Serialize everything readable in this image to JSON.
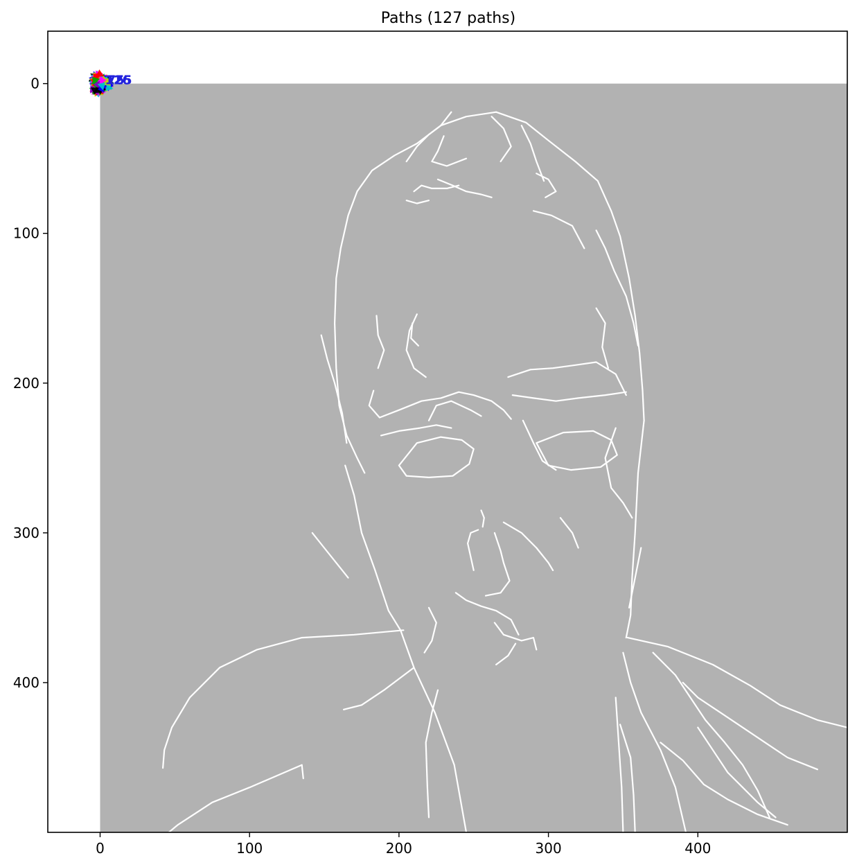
{
  "chart_data": {
    "type": "image-overlay",
    "title": "Paths (127 paths)",
    "xlabel": "",
    "ylabel": "",
    "xlim": [
      -35,
      500
    ],
    "ylim": [
      500,
      -35
    ],
    "image_extent": {
      "x": [
        0,
        500
      ],
      "y": [
        0,
        500
      ]
    },
    "image_background": "#b2b2b2",
    "edge_color": "#ffffff",
    "x_ticks": [
      0,
      100,
      200,
      300,
      400
    ],
    "y_ticks": [
      0,
      100,
      200,
      300,
      400
    ],
    "path_start_markers": {
      "count": 127,
      "center": [
        0,
        0
      ],
      "colors": [
        "#ff00ff",
        "#0000ff",
        "#00aa00",
        "#cccc00",
        "#000000",
        "#ff0000",
        "#00cccc",
        "#8800cc"
      ]
    },
    "path_number_labels": [
      "126",
      "125",
      "75"
    ],
    "path_number_label_color": "#2222dd",
    "edges": [
      [
        [
          265,
          19
        ],
        [
          245,
          22
        ],
        [
          228,
          28
        ],
        [
          212,
          40
        ],
        [
          197,
          48
        ],
        [
          182,
          58
        ],
        [
          172,
          72
        ],
        [
          166,
          88
        ],
        [
          161,
          110
        ],
        [
          158,
          130
        ],
        [
          157,
          160
        ],
        [
          158,
          190
        ],
        [
          160,
          215
        ],
        [
          165,
          235
        ],
        [
          172,
          250
        ],
        [
          177,
          260
        ]
      ],
      [
        [
          265,
          19
        ],
        [
          285,
          26
        ],
        [
          300,
          38
        ],
        [
          318,
          52
        ],
        [
          333,
          65
        ],
        [
          342,
          85
        ],
        [
          348,
          102
        ],
        [
          354,
          130
        ],
        [
          358,
          155
        ],
        [
          361,
          180
        ],
        [
          363,
          205
        ],
        [
          364,
          225
        ]
      ],
      [
        [
          164,
          255
        ],
        [
          170,
          275
        ],
        [
          175,
          300
        ],
        [
          184,
          325
        ],
        [
          193,
          352
        ],
        [
          201,
          365
        ],
        [
          210,
          390
        ],
        [
          224,
          420
        ],
        [
          237,
          455
        ],
        [
          245,
          500
        ]
      ],
      [
        [
          364,
          225
        ],
        [
          360,
          260
        ],
        [
          358,
          300
        ],
        [
          356,
          330
        ],
        [
          355,
          355
        ],
        [
          352,
          370
        ]
      ],
      [
        [
          353,
          370
        ],
        [
          380,
          376
        ],
        [
          410,
          388
        ],
        [
          435,
          402
        ],
        [
          455,
          415
        ],
        [
          480,
          425
        ],
        [
          500,
          430
        ]
      ],
      [
        [
          203,
          365
        ],
        [
          170,
          368
        ],
        [
          135,
          370
        ],
        [
          105,
          378
        ],
        [
          80,
          390
        ],
        [
          60,
          410
        ],
        [
          48,
          430
        ],
        [
          43,
          445
        ],
        [
          42,
          457
        ]
      ],
      [
        [
          210,
          390
        ],
        [
          190,
          405
        ],
        [
          175,
          415
        ],
        [
          163,
          418
        ]
      ],
      [
        [
          135,
          455
        ],
        [
          100,
          470
        ],
        [
          75,
          480
        ],
        [
          52,
          495
        ],
        [
          46,
          500
        ]
      ],
      [
        [
          135,
          455
        ],
        [
          136,
          464
        ]
      ],
      [
        [
          350,
          380
        ],
        [
          355,
          400
        ],
        [
          362,
          420
        ],
        [
          375,
          445
        ],
        [
          385,
          470
        ],
        [
          392,
          500
        ]
      ],
      [
        [
          345,
          410
        ],
        [
          347,
          440
        ],
        [
          349,
          470
        ],
        [
          350,
          500
        ]
      ],
      [
        [
          348,
          428
        ],
        [
          355,
          450
        ],
        [
          357,
          475
        ],
        [
          358,
          500
        ]
      ],
      [
        [
          226,
          405
        ],
        [
          222,
          420
        ],
        [
          218,
          440
        ],
        [
          219,
          470
        ],
        [
          220,
          490
        ]
      ],
      [
        [
          183,
          205
        ],
        [
          180,
          215
        ],
        [
          187,
          223
        ],
        [
          200,
          218
        ],
        [
          215,
          212
        ],
        [
          228,
          210
        ],
        [
          240,
          206
        ],
        [
          250,
          208
        ],
        [
          262,
          212
        ],
        [
          270,
          218
        ],
        [
          275,
          224
        ]
      ],
      [
        [
          188,
          235
        ],
        [
          200,
          232
        ],
        [
          214,
          230
        ],
        [
          225,
          228
        ],
        [
          235,
          230
        ]
      ],
      [
        [
          273,
          196
        ],
        [
          288,
          191
        ],
        [
          303,
          190
        ],
        [
          318,
          188
        ],
        [
          332,
          186
        ],
        [
          345,
          194
        ],
        [
          352,
          208
        ]
      ],
      [
        [
          276,
          208
        ],
        [
          290,
          210
        ],
        [
          305,
          212
        ],
        [
          320,
          210
        ],
        [
          338,
          208
        ],
        [
          352,
          206
        ]
      ],
      [
        [
          200,
          255
        ],
        [
          212,
          240
        ],
        [
          228,
          236
        ],
        [
          242,
          238
        ],
        [
          250,
          244
        ],
        [
          247,
          254
        ],
        [
          236,
          262
        ],
        [
          220,
          263
        ],
        [
          205,
          262
        ],
        [
          200,
          255
        ]
      ],
      [
        [
          292,
          240
        ],
        [
          310,
          233
        ],
        [
          330,
          232
        ],
        [
          342,
          238
        ],
        [
          346,
          248
        ],
        [
          335,
          256
        ],
        [
          315,
          258
        ],
        [
          300,
          255
        ],
        [
          292,
          240
        ]
      ],
      [
        [
          283,
          225
        ],
        [
          290,
          240
        ],
        [
          296,
          252
        ],
        [
          305,
          258
        ]
      ],
      [
        [
          255,
          285
        ],
        [
          257,
          290
        ],
        [
          256,
          296
        ]
      ],
      [
        [
          253,
          298
        ],
        [
          248,
          300
        ],
        [
          246,
          307
        ],
        [
          248,
          316
        ],
        [
          250,
          325
        ]
      ],
      [
        [
          270,
          293
        ],
        [
          282,
          300
        ],
        [
          292,
          310
        ],
        [
          300,
          320
        ],
        [
          303,
          325
        ]
      ],
      [
        [
          264,
          300
        ],
        [
          268,
          312
        ],
        [
          270,
          320
        ],
        [
          274,
          332
        ],
        [
          268,
          340
        ],
        [
          258,
          342
        ]
      ],
      [
        [
          238,
          340
        ],
        [
          245,
          345
        ],
        [
          255,
          349
        ],
        [
          265,
          352
        ],
        [
          275,
          358
        ],
        [
          280,
          368
        ]
      ],
      [
        [
          220,
          350
        ],
        [
          225,
          360
        ],
        [
          222,
          372
        ],
        [
          217,
          380
        ]
      ],
      [
        [
          264,
          360
        ],
        [
          270,
          368
        ],
        [
          282,
          372
        ],
        [
          290,
          370
        ],
        [
          292,
          378
        ]
      ],
      [
        [
          278,
          374
        ],
        [
          273,
          382
        ],
        [
          265,
          388
        ]
      ],
      [
        [
          218,
          196
        ],
        [
          210,
          190
        ],
        [
          205,
          178
        ],
        [
          207,
          165
        ],
        [
          212,
          154
        ]
      ],
      [
        [
          213,
          175
        ],
        [
          208,
          170
        ],
        [
          209,
          160
        ]
      ],
      [
        [
          235,
          19
        ],
        [
          228,
          28
        ],
        [
          220,
          34
        ],
        [
          212,
          42
        ],
        [
          205,
          52
        ]
      ],
      [
        [
          230,
          35
        ],
        [
          226,
          45
        ],
        [
          222,
          52
        ],
        [
          232,
          55
        ],
        [
          245,
          50
        ]
      ],
      [
        [
          262,
          22
        ],
        [
          270,
          30
        ],
        [
          275,
          42
        ],
        [
          268,
          52
        ]
      ],
      [
        [
          282,
          28
        ],
        [
          288,
          40
        ],
        [
          292,
          52
        ],
        [
          297,
          65
        ]
      ],
      [
        [
          292,
          60
        ],
        [
          300,
          64
        ],
        [
          305,
          72
        ],
        [
          298,
          76
        ]
      ],
      [
        [
          210,
          72
        ],
        [
          215,
          68
        ],
        [
          222,
          70
        ],
        [
          232,
          70
        ],
        [
          240,
          68
        ]
      ],
      [
        [
          205,
          78
        ],
        [
          212,
          80
        ],
        [
          220,
          78
        ]
      ],
      [
        [
          226,
          64
        ],
        [
          236,
          68
        ],
        [
          245,
          72
        ],
        [
          255,
          74
        ],
        [
          262,
          76
        ]
      ],
      [
        [
          290,
          85
        ],
        [
          302,
          88
        ],
        [
          316,
          95
        ],
        [
          324,
          110
        ]
      ],
      [
        [
          332,
          98
        ],
        [
          338,
          110
        ],
        [
          344,
          125
        ],
        [
          352,
          142
        ],
        [
          357,
          160
        ],
        [
          360,
          175
        ]
      ],
      [
        [
          340,
          190
        ],
        [
          336,
          176
        ],
        [
          338,
          160
        ],
        [
          332,
          150
        ]
      ],
      [
        [
          345,
          230
        ],
        [
          338,
          250
        ],
        [
          342,
          270
        ],
        [
          350,
          280
        ],
        [
          356,
          290
        ]
      ],
      [
        [
          148,
          168
        ],
        [
          152,
          184
        ],
        [
          157,
          200
        ],
        [
          162,
          220
        ],
        [
          165,
          240
        ]
      ],
      [
        [
          185,
          155
        ],
        [
          186,
          168
        ],
        [
          190,
          178
        ],
        [
          186,
          190
        ]
      ],
      [
        [
          362,
          310
        ],
        [
          358,
          330
        ],
        [
          354,
          350
        ]
      ],
      [
        [
          400,
          430
        ],
        [
          410,
          445
        ],
        [
          420,
          460
        ],
        [
          430,
          470
        ],
        [
          440,
          480
        ],
        [
          452,
          490
        ]
      ],
      [
        [
          375,
          440
        ],
        [
          390,
          452
        ],
        [
          404,
          468
        ],
        [
          420,
          478
        ],
        [
          440,
          488
        ],
        [
          460,
          495
        ]
      ],
      [
        [
          390,
          400
        ],
        [
          400,
          410
        ],
        [
          415,
          420
        ],
        [
          430,
          430
        ],
        [
          445,
          440
        ],
        [
          460,
          450
        ],
        [
          480,
          458
        ]
      ],
      [
        [
          370,
          380
        ],
        [
          385,
          395
        ],
        [
          395,
          410
        ],
        [
          405,
          425
        ],
        [
          418,
          440
        ],
        [
          430,
          455
        ],
        [
          440,
          472
        ],
        [
          448,
          490
        ]
      ],
      [
        [
          220,
          225
        ],
        [
          225,
          215
        ],
        [
          235,
          212
        ],
        [
          248,
          218
        ],
        [
          255,
          222
        ]
      ],
      [
        [
          142,
          300
        ],
        [
          150,
          310
        ],
        [
          158,
          320
        ],
        [
          166,
          330
        ]
      ],
      [
        [
          308,
          290
        ],
        [
          316,
          300
        ],
        [
          320,
          310
        ]
      ]
    ]
  }
}
